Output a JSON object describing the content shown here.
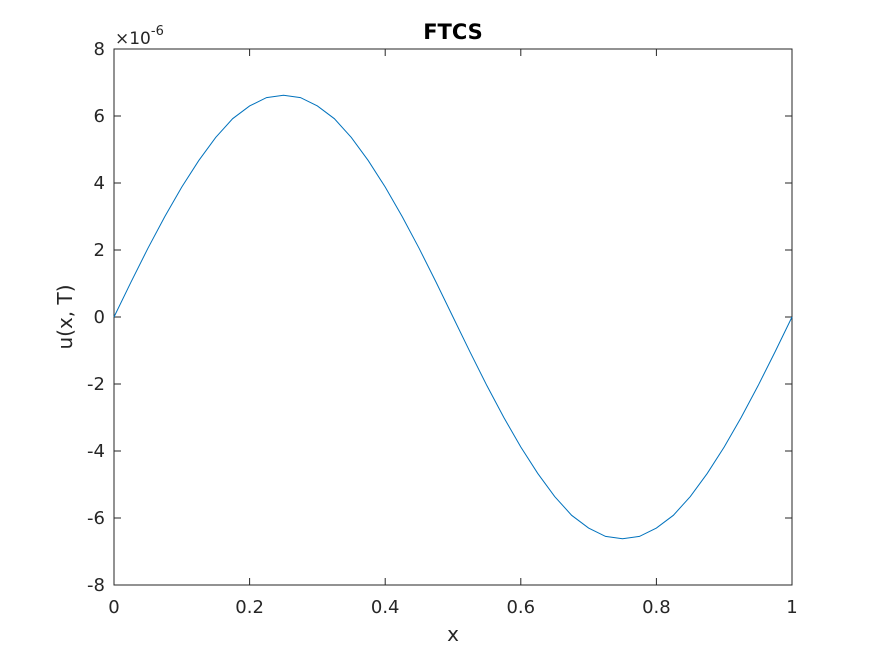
{
  "chart_data": {
    "type": "line",
    "title": "FTCS",
    "xlabel": "x",
    "ylabel": "u(x, T)",
    "xlim": [
      0,
      1
    ],
    "ylim": [
      -8,
      8
    ],
    "x_ticks": [
      "0",
      "0.2",
      "0.4",
      "0.6",
      "0.8",
      "1"
    ],
    "y_ticks": [
      "-8",
      "-6",
      "-4",
      "-2",
      "0",
      "2",
      "4",
      "6",
      "8"
    ],
    "y_exponent_base": "×10",
    "y_exponent_power": "-6",
    "grid": false,
    "line_color": "#0072bd",
    "series": [
      {
        "x": [
          0,
          0.025,
          0.05,
          0.075,
          0.1,
          0.125,
          0.15,
          0.175,
          0.2,
          0.225,
          0.25,
          0.275,
          0.3,
          0.325,
          0.35,
          0.375,
          0.4,
          0.425,
          0.45,
          0.475,
          0.5,
          0.525,
          0.55,
          0.575,
          0.6,
          0.625,
          0.65,
          0.675,
          0.7,
          0.725,
          0.75,
          0.775,
          0.8,
          0.825,
          0.85,
          0.875,
          0.9,
          0.925,
          0.95,
          0.975,
          1
        ],
        "y": [
          0,
          1.04,
          2.05,
          3.0,
          3.88,
          4.67,
          5.36,
          5.92,
          6.3,
          6.55,
          6.62,
          6.55,
          6.3,
          5.92,
          5.36,
          4.67,
          3.88,
          3.0,
          2.05,
          1.04,
          0,
          -1.04,
          -2.05,
          -3.0,
          -3.88,
          -4.67,
          -5.36,
          -5.92,
          -6.3,
          -6.55,
          -6.62,
          -6.55,
          -6.3,
          -5.92,
          -5.36,
          -4.67,
          -3.88,
          -3.0,
          -2.05,
          -1.04,
          0
        ]
      }
    ]
  }
}
